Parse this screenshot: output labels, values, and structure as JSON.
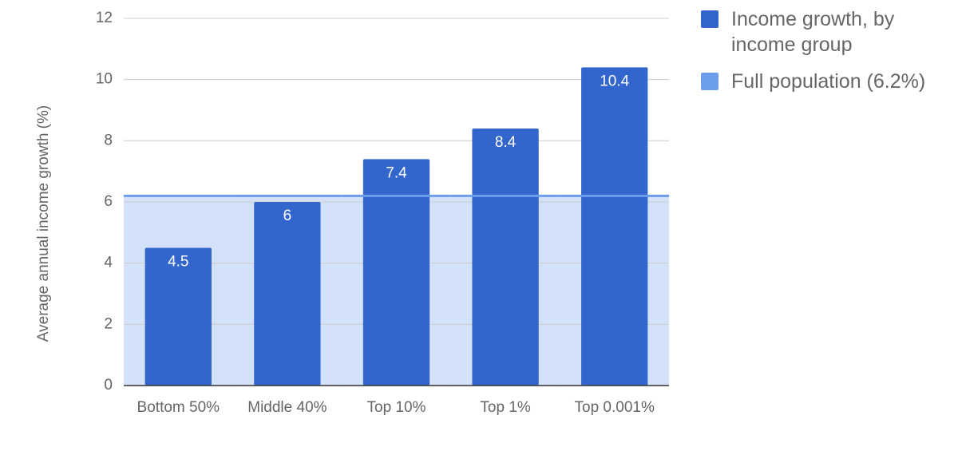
{
  "chart_data": {
    "type": "bar",
    "y_axis_label": "Average annual income growth (%)",
    "categories": [
      "Bottom 50%",
      "Middle 40%",
      "Top 10%",
      "Top 1%",
      "Top 0.001%"
    ],
    "series": [
      {
        "name": "Income growth, by income group",
        "type": "bar",
        "color": "#3366cc",
        "values": [
          4.5,
          6,
          7.4,
          8.4,
          10.4
        ]
      },
      {
        "name": "Full population (6.2%)",
        "type": "area",
        "color": "#6d9eeb",
        "values": [
          6.2,
          6.2,
          6.2,
          6.2,
          6.2
        ]
      }
    ],
    "ylim": [
      0,
      12
    ],
    "yticks": [
      0,
      2,
      4,
      6,
      8,
      10,
      12
    ],
    "grid": true,
    "legend": "right"
  }
}
